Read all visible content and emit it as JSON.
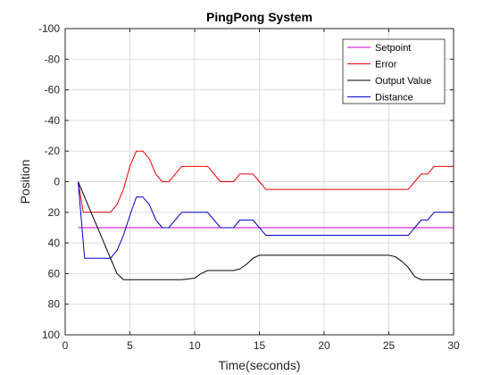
{
  "chart_data": {
    "type": "line",
    "title": "PingPong System",
    "xlabel": "Time(seconds)",
    "ylabel": "Position",
    "xlim": [
      0,
      30
    ],
    "ylim": [
      -100,
      100
    ],
    "y_reversed": true,
    "grid": true,
    "legend_position": "top-right",
    "x_ticks": [
      "0",
      "5",
      "10",
      "15",
      "20",
      "25",
      "30"
    ],
    "y_ticks": [
      "-100",
      "-80",
      "-60",
      "-40",
      "-20",
      "0",
      "20",
      "40",
      "60",
      "80",
      "100"
    ],
    "series": [
      {
        "name": "Setpoint",
        "color": "#cc00cc",
        "points": [
          [
            1,
            30
          ],
          [
            30,
            30
          ]
        ]
      },
      {
        "name": "Error",
        "color": "#ee0000",
        "points": [
          [
            1,
            0
          ],
          [
            1.2,
            10
          ],
          [
            1.4,
            20
          ],
          [
            3.5,
            20
          ],
          [
            4,
            15
          ],
          [
            4.5,
            5
          ],
          [
            5,
            -10
          ],
          [
            5.5,
            -20
          ],
          [
            6.0,
            -20
          ],
          [
            6.5,
            -15
          ],
          [
            7,
            -5
          ],
          [
            7.5,
            0
          ],
          [
            8,
            0
          ],
          [
            8.5,
            -5
          ],
          [
            9,
            -10
          ],
          [
            11,
            -10
          ],
          [
            11.5,
            -5
          ],
          [
            12,
            0
          ],
          [
            13,
            0
          ],
          [
            13.5,
            -5
          ],
          [
            14.5,
            -5
          ],
          [
            15,
            0
          ],
          [
            15.5,
            5
          ],
          [
            26.5,
            5
          ],
          [
            27,
            0
          ],
          [
            27.5,
            -5
          ],
          [
            28,
            -5
          ],
          [
            28.5,
            -10
          ],
          [
            30,
            -10
          ]
        ]
      },
      {
        "name": "Output Value",
        "color": "#000000",
        "points": [
          [
            1,
            0
          ],
          [
            1.5,
            10
          ],
          [
            2,
            20
          ],
          [
            2.5,
            30
          ],
          [
            3,
            40
          ],
          [
            3.5,
            50
          ],
          [
            4,
            60
          ],
          [
            4.5,
            64
          ],
          [
            8,
            64
          ],
          [
            9,
            64
          ],
          [
            10,
            63
          ],
          [
            10.5,
            60
          ],
          [
            11,
            58
          ],
          [
            13,
            58
          ],
          [
            13.5,
            57
          ],
          [
            14,
            54
          ],
          [
            14.5,
            50
          ],
          [
            15,
            48
          ],
          [
            25,
            48
          ],
          [
            25.5,
            49
          ],
          [
            26,
            52
          ],
          [
            26.5,
            56
          ],
          [
            27,
            62
          ],
          [
            27.5,
            64
          ],
          [
            30,
            64
          ]
        ]
      },
      {
        "name": "Distance",
        "color": "#0000cc",
        "points": [
          [
            1,
            0
          ],
          [
            1.2,
            20
          ],
          [
            1.5,
            50
          ],
          [
            3.5,
            50
          ],
          [
            4,
            45
          ],
          [
            4.5,
            35
          ],
          [
            5,
            22
          ],
          [
            5.5,
            10
          ],
          [
            6,
            10
          ],
          [
            6.5,
            15
          ],
          [
            7,
            25
          ],
          [
            7.5,
            30
          ],
          [
            8,
            30
          ],
          [
            8.5,
            25
          ],
          [
            9,
            20
          ],
          [
            11,
            20
          ],
          [
            11.5,
            25
          ],
          [
            12,
            30
          ],
          [
            13,
            30
          ],
          [
            13.5,
            25
          ],
          [
            14.5,
            25
          ],
          [
            15,
            30
          ],
          [
            15.5,
            35
          ],
          [
            26.5,
            35
          ],
          [
            27,
            30
          ],
          [
            27.5,
            25
          ],
          [
            28,
            25
          ],
          [
            28.5,
            20
          ],
          [
            30,
            20
          ]
        ]
      }
    ]
  }
}
